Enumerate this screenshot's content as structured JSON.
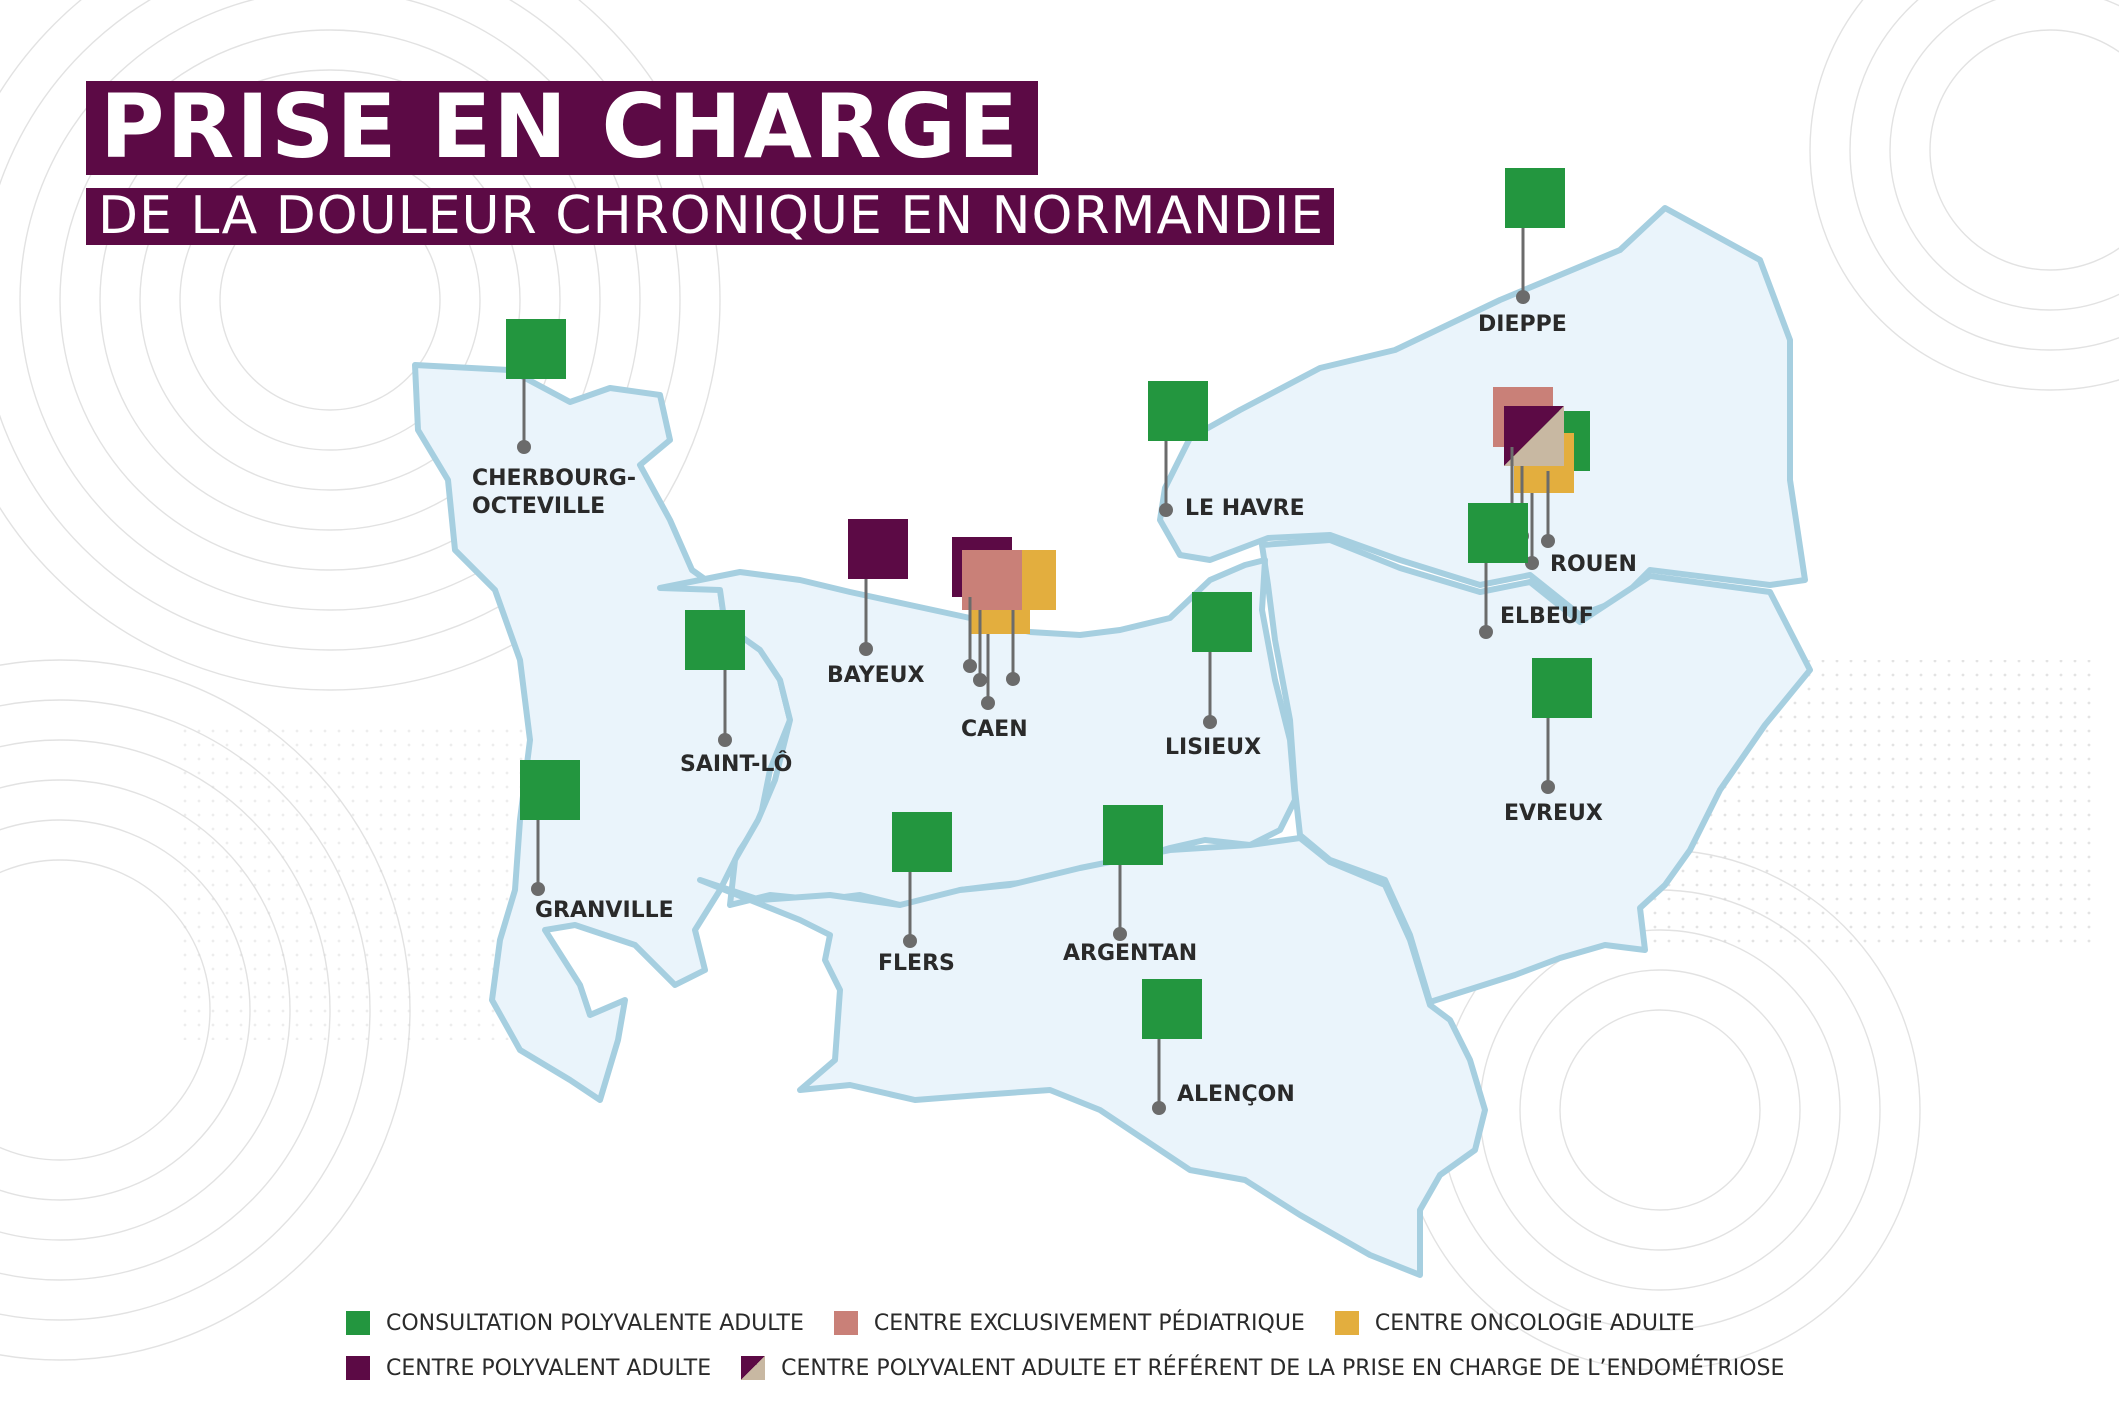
{
  "title": "PRISE EN CHARGE",
  "subtitle": "DE LA DOULEUR CHRONIQUE EN NORMANDIE",
  "colors": {
    "consultation": "#23963f",
    "pediatrique": "#c98078",
    "oncologie": "#e3ae3e",
    "polyvalent": "#5c0a45",
    "endometriose_a": "#5c0a45",
    "endometriose_b": "#c8b8a2",
    "region_fill": "#eaf4fb",
    "region_stroke": "#a6cfe0",
    "pin": "#6b6b6b"
  },
  "cities": [
    {
      "id": "cherbourg",
      "label": "CHERBOURG-\nOCTEVILLE",
      "types": [
        "consultation"
      ]
    },
    {
      "id": "dieppe",
      "label": "DIEPPE",
      "types": [
        "consultation"
      ]
    },
    {
      "id": "le-havre",
      "label": "LE HAVRE",
      "types": [
        "consultation"
      ]
    },
    {
      "id": "rouen",
      "label": "ROUEN",
      "types": [
        "pediatrique",
        "consultation",
        "oncologie",
        "endometriose"
      ]
    },
    {
      "id": "elbeuf",
      "label": "ELBEUF",
      "types": [
        "consultation"
      ]
    },
    {
      "id": "bayeux",
      "label": "BAYEUX",
      "types": [
        "polyvalent"
      ]
    },
    {
      "id": "caen",
      "label": "CAEN",
      "types": [
        "polyvalent",
        "oncologie",
        "pediatrique"
      ]
    },
    {
      "id": "saint-lo",
      "label": "SAINT-LÔ",
      "types": [
        "consultation"
      ]
    },
    {
      "id": "lisieux",
      "label": "LISIEUX",
      "types": [
        "consultation"
      ]
    },
    {
      "id": "evreux",
      "label": "EVREUX",
      "types": [
        "consultation"
      ]
    },
    {
      "id": "granville",
      "label": "GRANVILLE",
      "types": [
        "consultation"
      ]
    },
    {
      "id": "flers",
      "label": "FLERS",
      "types": [
        "consultation"
      ]
    },
    {
      "id": "argentan",
      "label": "ARGENTAN",
      "types": [
        "consultation"
      ]
    },
    {
      "id": "alencon",
      "label": "ALENÇON",
      "types": [
        "consultation"
      ]
    }
  ],
  "legend": {
    "row1": [
      {
        "key": "consultation",
        "label": "CONSULTATION POLYVALENTE ADULTE"
      },
      {
        "key": "pediatrique",
        "label": "CENTRE EXCLUSIVEMENT PÉDIATRIQUE"
      },
      {
        "key": "oncologie",
        "label": "CENTRE ONCOLOGIE ADULTE"
      }
    ],
    "row2": [
      {
        "key": "polyvalent",
        "label": "CENTRE POLYVALENT ADULTE"
      },
      {
        "key": "endometriose",
        "label": "CENTRE POLYVALENT ADULTE ET RÉFÉRENT DE LA PRISE EN CHARGE DE L’ENDOMÉTRIOSE"
      }
    ]
  }
}
